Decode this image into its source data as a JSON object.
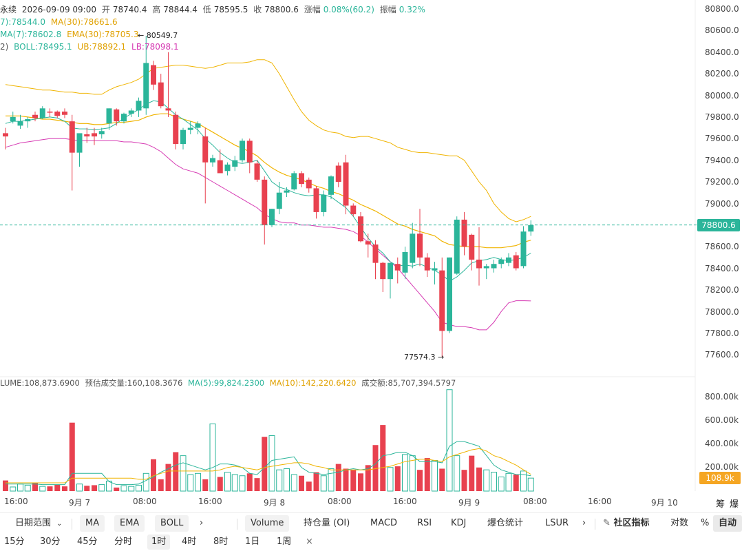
{
  "header": {
    "line1": {
      "prefix": "永续",
      "datetime": "2026-09-09 09:00",
      "open_label": "开",
      "open": "78740.4",
      "high_label": "高",
      "high": "78844.4",
      "low_label": "低",
      "low": "78595.5",
      "close_label": "收",
      "close": "78800.6",
      "chg_label": "涨幅",
      "chg": "0.08%(60.2)",
      "amp_label": "振幅",
      "amp": "0.32%"
    },
    "line2": {
      "ma7": "7):78544.0",
      "ma30": "MA(30):78661.6"
    },
    "line3": {
      "ema7": "MA(7):78602.8",
      "ema30": "EMA(30):78705.3"
    },
    "line4": {
      "boll_prefix": "2)",
      "boll": "BOLL:78495.1",
      "ub": "UB:78892.1",
      "lb": "LB:78098.1"
    },
    "vol_line": {
      "vol": "LUME:108,873.6900",
      "est_label": "预估成交量:160,108.3676",
      "ma5": "MA(5):99,824.2300",
      "ma10": "MA(10):142,220.6420",
      "turnover": "成交额:85,707,394.5797"
    }
  },
  "annotations": {
    "high": "← 80549.7",
    "low": "77574.3 →"
  },
  "price_axis": [
    "80800.0",
    "80600.0",
    "80400.0",
    "80200.0",
    "80000.0",
    "79800.0",
    "79600.0",
    "79400.0",
    "79200.0",
    "79000.0",
    "78800.0",
    "78600.0",
    "78400.0",
    "78200.0",
    "78000.0",
    "77800.0",
    "77600.0"
  ],
  "volume_axis": [
    "800.00k",
    "600.00k",
    "400.00k",
    "200.00k"
  ],
  "current_price_tag": "78800.6",
  "current_volume_tag": "108.9k",
  "time_axis": [
    "16:00",
    "9月 7",
    "08:00",
    "16:00",
    "9月 8",
    "08:00",
    "16:00",
    "9月 9",
    "08:00",
    "16:00",
    "9月 10"
  ],
  "corner_labels": [
    "筹",
    "爆"
  ],
  "toolbar": {
    "date_range": "日期范围",
    "indicators_main": [
      "MA",
      "EMA",
      "BOLL"
    ],
    "more_arrow": "›",
    "indicators_sub": [
      "Volume",
      "持仓量 (OI)",
      "MACD",
      "RSI",
      "KDJ",
      "爆仓统计",
      "LSUR"
    ],
    "community": "社区指标",
    "log": "对数",
    "percent": "%",
    "auto": "自动"
  },
  "timeframes": [
    "15分",
    "30分",
    "45分",
    "分时",
    "1时",
    "4时",
    "8时",
    "1日",
    "1周"
  ],
  "timeframe_active": "1时",
  "close_symbol": "×",
  "colors": {
    "up": "#2bb59a",
    "down": "#e8414f",
    "ma": "#2bb59a",
    "ma30": "#f0b400",
    "lb": "#d63ab3"
  },
  "chart_data": {
    "type": "candlestick",
    "price_range": [
      77500,
      80850
    ],
    "volume_range": [
      0,
      860000
    ],
    "candles": [
      {
        "o": 79650,
        "h": 79700,
        "l": 79500,
        "c": 79620
      },
      {
        "o": 79760,
        "h": 79850,
        "l": 79740,
        "c": 79800
      },
      {
        "o": 79720,
        "h": 79820,
        "l": 79690,
        "c": 79760
      },
      {
        "o": 79760,
        "h": 79800,
        "l": 79700,
        "c": 79780
      },
      {
        "o": 79820,
        "h": 79850,
        "l": 79760,
        "c": 79790
      },
      {
        "o": 79790,
        "h": 79900,
        "l": 79780,
        "c": 79880
      },
      {
        "o": 79850,
        "h": 79880,
        "l": 79800,
        "c": 79840
      },
      {
        "o": 79850,
        "h": 79860,
        "l": 79790,
        "c": 79810
      },
      {
        "o": 79850,
        "h": 79880,
        "l": 79790,
        "c": 79820
      },
      {
        "o": 79760,
        "h": 79820,
        "l": 79120,
        "c": 79470
      },
      {
        "o": 79470,
        "h": 79640,
        "l": 79340,
        "c": 79650
      },
      {
        "o": 79640,
        "h": 79700,
        "l": 79560,
        "c": 79620
      },
      {
        "o": 79650,
        "h": 79700,
        "l": 79540,
        "c": 79620
      },
      {
        "o": 79640,
        "h": 79700,
        "l": 79600,
        "c": 79670
      },
      {
        "o": 79740,
        "h": 79880,
        "l": 79680,
        "c": 79880
      },
      {
        "o": 79870,
        "h": 79880,
        "l": 79720,
        "c": 79760
      },
      {
        "o": 79760,
        "h": 79840,
        "l": 79740,
        "c": 79830
      },
      {
        "o": 79830,
        "h": 79880,
        "l": 79800,
        "c": 79860
      },
      {
        "o": 79860,
        "h": 79980,
        "l": 79800,
        "c": 79950
      },
      {
        "o": 79880,
        "h": 80550,
        "l": 79820,
        "c": 80300
      },
      {
        "o": 80280,
        "h": 80320,
        "l": 80050,
        "c": 80100
      },
      {
        "o": 80120,
        "h": 80200,
        "l": 79880,
        "c": 79900
      },
      {
        "o": 79880,
        "h": 80400,
        "l": 79800,
        "c": 79860
      },
      {
        "o": 79820,
        "h": 79850,
        "l": 79500,
        "c": 79550
      },
      {
        "o": 79550,
        "h": 79700,
        "l": 79500,
        "c": 79680
      },
      {
        "o": 79680,
        "h": 79760,
        "l": 79640,
        "c": 79700
      },
      {
        "o": 79700,
        "h": 79760,
        "l": 79640,
        "c": 79740
      },
      {
        "o": 79620,
        "h": 79700,
        "l": 79000,
        "c": 79380
      },
      {
        "o": 79380,
        "h": 79450,
        "l": 79340,
        "c": 79420
      },
      {
        "o": 79400,
        "h": 79500,
        "l": 79300,
        "c": 79280
      },
      {
        "o": 79300,
        "h": 79380,
        "l": 79260,
        "c": 79360
      },
      {
        "o": 79340,
        "h": 79440,
        "l": 79300,
        "c": 79400
      },
      {
        "o": 79400,
        "h": 79600,
        "l": 79380,
        "c": 79580
      },
      {
        "o": 79580,
        "h": 79600,
        "l": 79280,
        "c": 79380
      },
      {
        "o": 79370,
        "h": 79400,
        "l": 79200,
        "c": 79220
      },
      {
        "o": 79220,
        "h": 79250,
        "l": 78620,
        "c": 78800
      },
      {
        "o": 78800,
        "h": 78950,
        "l": 78780,
        "c": 78950
      },
      {
        "o": 78950,
        "h": 79200,
        "l": 78900,
        "c": 79100
      },
      {
        "o": 79100,
        "h": 79150,
        "l": 79060,
        "c": 79120
      },
      {
        "o": 79130,
        "h": 79300,
        "l": 79120,
        "c": 79280
      },
      {
        "o": 79280,
        "h": 79300,
        "l": 79150,
        "c": 79180
      },
      {
        "o": 79220,
        "h": 79240,
        "l": 79100,
        "c": 79140
      },
      {
        "o": 79140,
        "h": 79160,
        "l": 78860,
        "c": 78920
      },
      {
        "o": 78920,
        "h": 79120,
        "l": 78880,
        "c": 79080
      },
      {
        "o": 79080,
        "h": 79260,
        "l": 79040,
        "c": 79250
      },
      {
        "o": 79350,
        "h": 79380,
        "l": 79150,
        "c": 79200
      },
      {
        "o": 79380,
        "h": 79450,
        "l": 78900,
        "c": 78980
      },
      {
        "o": 78980,
        "h": 79000,
        "l": 78880,
        "c": 78900
      },
      {
        "o": 78880,
        "h": 78920,
        "l": 78640,
        "c": 78650
      },
      {
        "o": 78650,
        "h": 78720,
        "l": 78500,
        "c": 78620
      },
      {
        "o": 78620,
        "h": 78660,
        "l": 78300,
        "c": 78450
      },
      {
        "o": 78450,
        "h": 78460,
        "l": 78180,
        "c": 78300
      },
      {
        "o": 78300,
        "h": 78440,
        "l": 78120,
        "c": 78450
      },
      {
        "o": 78440,
        "h": 78500,
        "l": 78260,
        "c": 78380
      },
      {
        "o": 78360,
        "h": 78600,
        "l": 78300,
        "c": 78550
      },
      {
        "o": 78450,
        "h": 78820,
        "l": 78400,
        "c": 78720
      },
      {
        "o": 78720,
        "h": 78950,
        "l": 78420,
        "c": 78500
      },
      {
        "o": 78500,
        "h": 78540,
        "l": 78320,
        "c": 78380
      },
      {
        "o": 78380,
        "h": 78460,
        "l": 78250,
        "c": 78400
      },
      {
        "o": 78380,
        "h": 78500,
        "l": 77580,
        "c": 77820
      },
      {
        "o": 77820,
        "h": 78500,
        "l": 77800,
        "c": 78500
      },
      {
        "o": 78350,
        "h": 78880,
        "l": 78340,
        "c": 78850
      },
      {
        "o": 78850,
        "h": 78920,
        "l": 78520,
        "c": 78600
      },
      {
        "o": 78710,
        "h": 78720,
        "l": 78380,
        "c": 78480
      },
      {
        "o": 78480,
        "h": 78780,
        "l": 78240,
        "c": 78400
      },
      {
        "o": 78400,
        "h": 78440,
        "l": 78300,
        "c": 78420
      },
      {
        "o": 78400,
        "h": 78480,
        "l": 78360,
        "c": 78440
      },
      {
        "o": 78440,
        "h": 78500,
        "l": 78400,
        "c": 78480
      },
      {
        "o": 78450,
        "h": 78540,
        "l": 78420,
        "c": 78500
      },
      {
        "o": 78520,
        "h": 78550,
        "l": 78380,
        "c": 78400
      },
      {
        "o": 78420,
        "h": 78790,
        "l": 78400,
        "c": 78740
      },
      {
        "o": 78740,
        "h": 78844,
        "l": 78700,
        "c": 78800
      }
    ],
    "volume": [
      90,
      35,
      60,
      50,
      70,
      40,
      40,
      55,
      40,
      580,
      60,
      45,
      50,
      55,
      85,
      30,
      45,
      40,
      50,
      150,
      270,
      100,
      230,
      330,
      300,
      140,
      150,
      100,
      570,
      120,
      160,
      140,
      130,
      150,
      110,
      460,
      470,
      180,
      190,
      140,
      130,
      80,
      160,
      130,
      190,
      230,
      190,
      180,
      150,
      220,
      390,
      560,
      200,
      210,
      310,
      300,
      180,
      280,
      260,
      190,
      860,
      300,
      180,
      300,
      200,
      180,
      160,
      120,
      150,
      140,
      170,
      110
    ],
    "ma7": [
      79740,
      79760,
      79760,
      79770,
      79780,
      79790,
      79800,
      79790,
      79760,
      79700,
      79690,
      79690,
      79680,
      79690,
      79700,
      79740,
      79790,
      79830,
      79870,
      79920,
      79950,
      79940,
      79880,
      79820,
      79780,
      79730,
      79680,
      79600,
      79540,
      79470,
      79420,
      79380,
      79370,
      79380,
      79400,
      79300,
      79200,
      79150,
      79130,
      79100,
      79080,
      79070,
      79080,
      79080,
      79060,
      79010,
      78960,
      78880,
      78780,
      78680,
      78600,
      78540,
      78460,
      78420,
      78430,
      78420,
      78440,
      78410,
      78380,
      78340,
      78280,
      78320,
      78380,
      78450,
      78470,
      78480,
      78500,
      78480,
      78470,
      78480,
      78500,
      78540
    ],
    "ma30": [
      79810,
      79810,
      79810,
      79800,
      79790,
      79780,
      79780,
      79770,
      79760,
      79750,
      79740,
      79740,
      79730,
      79730,
      79740,
      79750,
      79750,
      79760,
      79770,
      79800,
      79820,
      79830,
      79830,
      79800,
      79780,
      79760,
      79740,
      79700,
      79660,
      79620,
      79580,
      79540,
      79510,
      79480,
      79440,
      79380,
      79330,
      79290,
      79260,
      79240,
      79220,
      79190,
      79160,
      79140,
      79110,
      79090,
      79060,
      79030,
      78990,
      78960,
      78930,
      78890,
      78850,
      78810,
      78790,
      78760,
      78740,
      78720,
      78700,
      78650,
      78620,
      78610,
      78600,
      78600,
      78600,
      78590,
      78590,
      78590,
      78600,
      78610,
      78640,
      78660
    ],
    "ub": [
      80100,
      80090,
      80080,
      80070,
      80060,
      80050,
      80050,
      80040,
      80030,
      80030,
      80020,
      80020,
      80010,
      80010,
      80050,
      80080,
      80100,
      80120,
      80150,
      80200,
      80250,
      80260,
      80270,
      80280,
      80280,
      80270,
      80260,
      80250,
      80260,
      80280,
      80300,
      80300,
      80300,
      80310,
      80330,
      80330,
      80300,
      80200,
      80080,
      79960,
      79850,
      79770,
      79720,
      79680,
      79660,
      79650,
      79620,
      79610,
      79620,
      79620,
      79600,
      79580,
      79560,
      79520,
      79500,
      79480,
      79470,
      79470,
      79460,
      79450,
      79440,
      79440,
      79400,
      79300,
      79200,
      79120,
      79000,
      78920,
      78860,
      78830,
      78850,
      78880
    ],
    "lb": [
      79520,
      79540,
      79560,
      79570,
      79580,
      79590,
      79600,
      79600,
      79600,
      79590,
      79580,
      79580,
      79580,
      79580,
      79580,
      79580,
      79570,
      79570,
      79560,
      79550,
      79520,
      79480,
      79420,
      79360,
      79320,
      79300,
      79280,
      79240,
      79200,
      79160,
      79120,
      79080,
      79040,
      79000,
      78960,
      78900,
      78860,
      78830,
      78820,
      78820,
      78800,
      78800,
      78790,
      78780,
      78780,
      78770,
      78760,
      78740,
      78700,
      78640,
      78580,
      78520,
      78460,
      78400,
      78320,
      78240,
      78160,
      78080,
      78000,
      77900,
      77880,
      77860,
      77860,
      77850,
      77830,
      77830,
      77900,
      78000,
      78080,
      78100,
      78100,
      78098
    ],
    "vol_ma5": [
      60,
      60,
      60,
      60,
      60,
      55,
      55,
      55,
      55,
      150,
      150,
      150,
      150,
      150,
      80,
      55,
      55,
      55,
      60,
      90,
      120,
      160,
      190,
      220,
      240,
      220,
      200,
      180,
      200,
      230,
      230,
      220,
      200,
      150,
      140,
      200,
      260,
      270,
      280,
      290,
      200,
      160,
      150,
      140,
      150,
      160,
      180,
      190,
      180,
      190,
      230,
      300,
      310,
      330,
      330,
      300,
      250,
      250,
      250,
      240,
      380,
      420,
      420,
      400,
      380,
      300,
      220,
      180,
      160,
      140,
      140,
      130
    ],
    "vol_ma10": [
      70,
      70,
      70,
      70,
      70,
      70,
      70,
      70,
      70,
      110,
      110,
      110,
      110,
      110,
      110,
      110,
      110,
      110,
      100,
      100,
      130,
      150,
      170,
      170,
      170,
      170,
      170,
      170,
      170,
      180,
      200,
      210,
      200,
      190,
      180,
      200,
      210,
      220,
      230,
      240,
      240,
      230,
      210,
      200,
      180,
      180,
      180,
      180,
      180,
      180,
      190,
      200,
      210,
      230,
      250,
      260,
      270,
      270,
      260,
      250,
      290,
      310,
      330,
      350,
      360,
      340,
      300,
      280,
      250,
      220,
      180,
      142
    ]
  }
}
